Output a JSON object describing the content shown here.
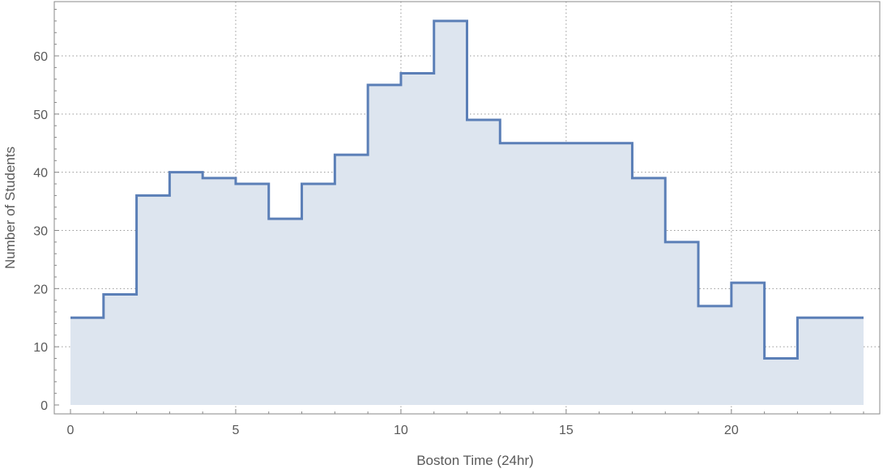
{
  "chart_data": {
    "type": "area",
    "xlabel": "Boston Time (24hr)",
    "ylabel": "Number of Students",
    "xlim": [
      0,
      24
    ],
    "ylim": [
      0,
      70
    ],
    "x_ticks": [
      0,
      5,
      10,
      15,
      20
    ],
    "y_ticks": [
      0,
      10,
      20,
      30,
      40,
      50,
      60
    ],
    "grid": true,
    "step": true,
    "x": [
      0,
      1,
      2,
      3,
      4,
      5,
      6,
      7,
      8,
      9,
      10,
      11,
      12,
      13,
      14,
      15,
      16,
      17,
      18,
      19,
      20,
      21,
      22,
      23
    ],
    "values": [
      15,
      19,
      36,
      40,
      39,
      38,
      32,
      38,
      43,
      55,
      57,
      66,
      49,
      45,
      45,
      45,
      45,
      39,
      28,
      17,
      21,
      8,
      15,
      15
    ],
    "colors": {
      "line": "#5b7fb7",
      "fill": "#dde5ef",
      "frame": "#888888",
      "grid": "#9a9a9a"
    }
  }
}
